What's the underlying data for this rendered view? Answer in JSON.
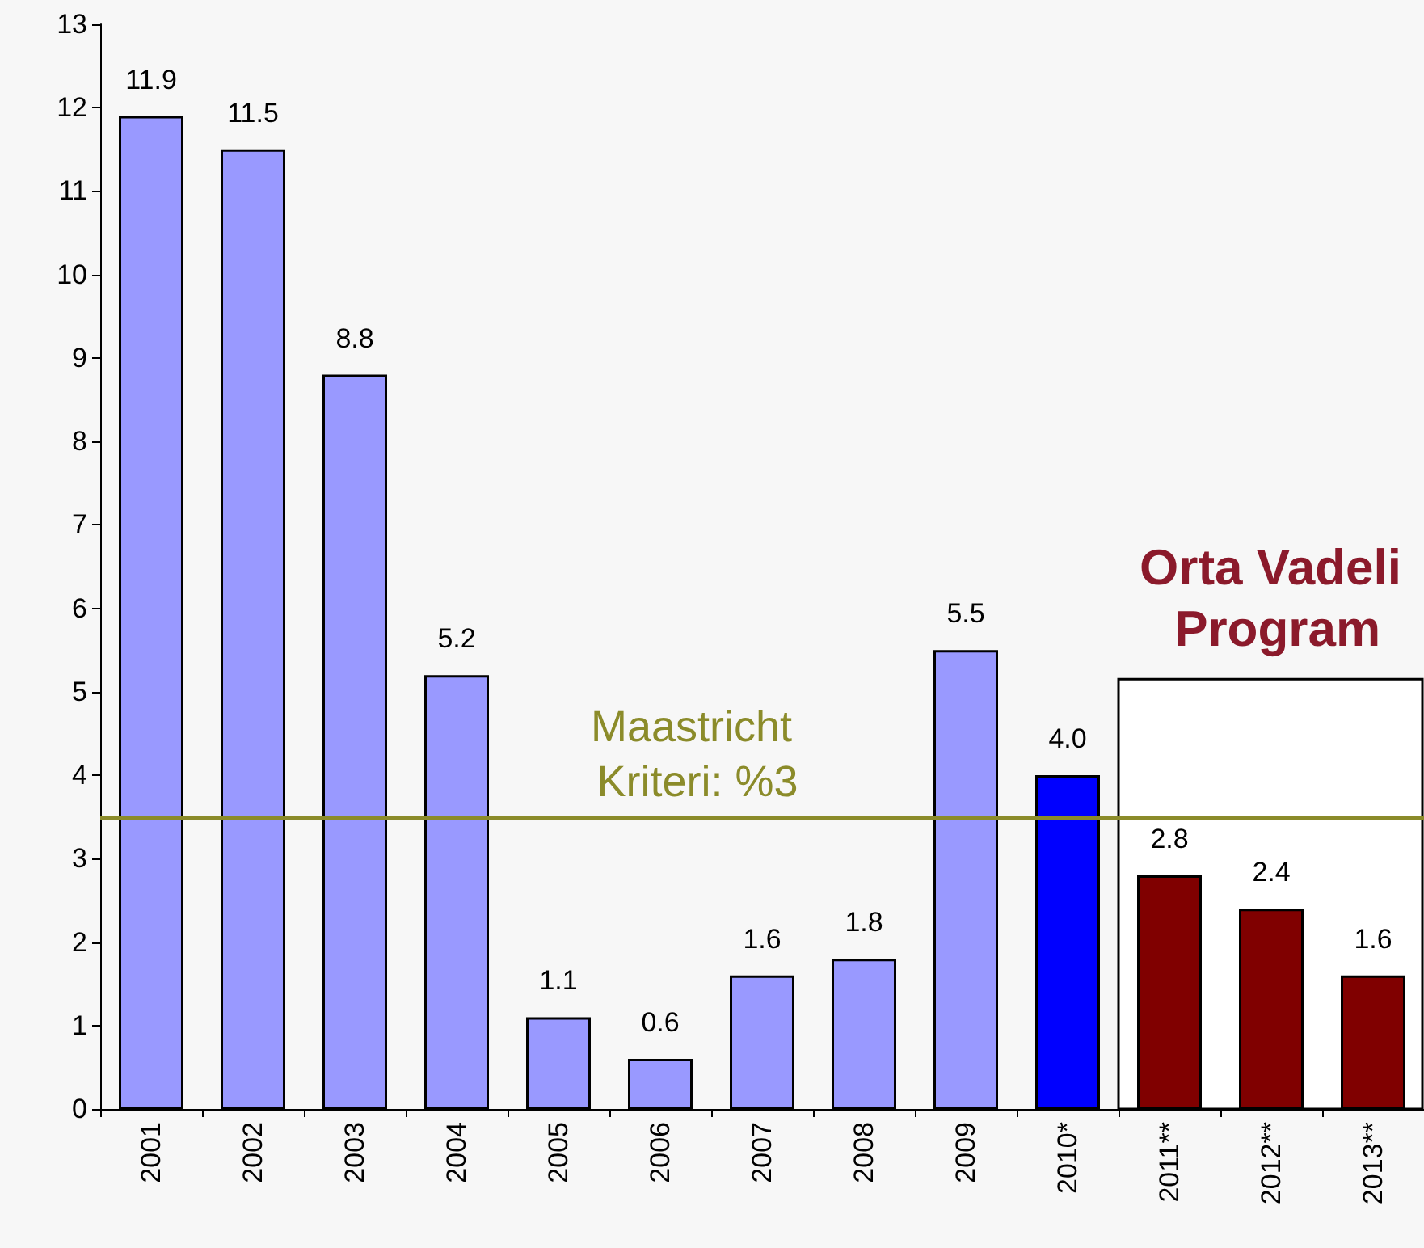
{
  "chart_data": {
    "type": "bar",
    "categories": [
      "2001",
      "2002",
      "2003",
      "2004",
      "2005",
      "2006",
      "2007",
      "2008",
      "2009",
      "2010*",
      "2011**",
      "2012**",
      "2013**"
    ],
    "values": [
      11.9,
      11.5,
      8.8,
      5.2,
      1.1,
      0.6,
      1.6,
      1.8,
      5.5,
      4.0,
      2.8,
      2.4,
      1.6
    ],
    "colors": [
      "#9999ff",
      "#9999ff",
      "#9999ff",
      "#9999ff",
      "#9999ff",
      "#9999ff",
      "#9999ff",
      "#9999ff",
      "#9999ff",
      "#0000ff",
      "#800000",
      "#800000",
      "#800000"
    ],
    "value_labels": [
      "11.9",
      "11.5",
      "8.8",
      "5.2",
      "1.1",
      "0.6",
      "1.6",
      "1.8",
      "5.5",
      "4.0",
      "2.8",
      "2.4",
      "1.6"
    ],
    "ylim": [
      0,
      13
    ],
    "yticks": [
      0,
      1,
      2,
      3,
      4,
      5,
      6,
      7,
      8,
      9,
      10,
      11,
      12,
      13
    ],
    "ref_lines": [
      {
        "axis": "y",
        "value": 3.5,
        "label": "Maastricht Kriteri: %3",
        "color": "#8b8b2a"
      }
    ],
    "bands": [
      {
        "axis": "x",
        "from": "2011**",
        "to": "2013**",
        "label": "Orta Vadeli Program",
        "color": "#ffffff"
      }
    ],
    "grid": false
  }
}
